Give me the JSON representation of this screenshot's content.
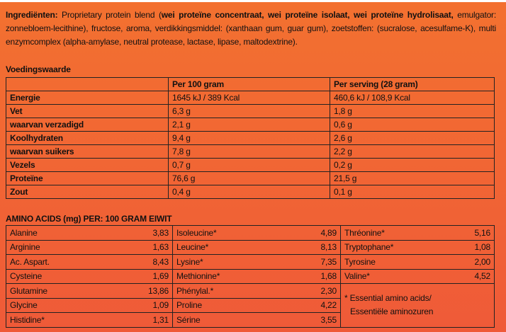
{
  "ingredients": {
    "label": "Ingrediënten:",
    "text1": " Proprietary protein blend (",
    "bold": "wei proteïne concentraat, wei proteïne isolaat, wei proteïne hydrolisaat,",
    "text2": " emulgator: zonnebloem-lecithine), fructose, aroma, verdikkingsmiddel: (xanthaan gum, guar gum), zoetstoffen: (sucralose, acesulfame-K), multi enzymcomplex (alpha-amylase, neutral protease, lactase, lipase, maltodextrine)."
  },
  "nutrition": {
    "title": "Voedingswaarde",
    "headers": [
      "",
      "Per 100 gram",
      "Per serving (28 gram)"
    ],
    "rows": [
      [
        "Energie",
        "1645 kJ / 389 Kcal",
        "460,6 kJ / 108,9 Kcal"
      ],
      [
        "Vet",
        "6,3 g",
        "1,8 g"
      ],
      [
        "waarvan verzadigd",
        "2,1 g",
        "0,6 g"
      ],
      [
        "Koolhydraten",
        "9,4 g",
        "2,6 g"
      ],
      [
        "waarvan suikers",
        "7,8 g",
        "2,2 g"
      ],
      [
        "Vezels",
        "0,7 g",
        "0,2 g"
      ],
      [
        "Proteïne",
        "76,6 g",
        "21,5 g"
      ],
      [
        "Zout",
        "0,4 g",
        "0,1 g"
      ]
    ]
  },
  "amino": {
    "title": "AMINO ACIDS (mg) PER: 100 GRAM EIWIT",
    "col1": [
      [
        "Alanine",
        "3,83"
      ],
      [
        "Arginine",
        "1,63"
      ],
      [
        "Ac. Aspart.",
        "8,43"
      ],
      [
        "Cysteine",
        "1,69"
      ],
      [
        "Glutamine",
        "13,86"
      ],
      [
        "Glycine",
        "1,09"
      ],
      [
        "Histidine*",
        "1,31"
      ]
    ],
    "col2": [
      [
        "Isoleucine*",
        "4,89"
      ],
      [
        "Leucine*",
        "8,13"
      ],
      [
        "Lysine*",
        "7,35"
      ],
      [
        "Methionine*",
        "1,68"
      ],
      [
        "Phénylal.*",
        "2,30"
      ],
      [
        "Proline",
        "4,22"
      ],
      [
        "Sérine",
        "3,55"
      ]
    ],
    "col3": [
      [
        "Thréonine*",
        "5,16"
      ],
      [
        "Tryptophane*",
        "1,08"
      ],
      [
        "Tyrosine",
        "2,00"
      ],
      [
        "Valine*",
        "4,52"
      ]
    ],
    "note1": "* Essential amino acids/",
    "note2": "Essentiële aminozuren"
  }
}
